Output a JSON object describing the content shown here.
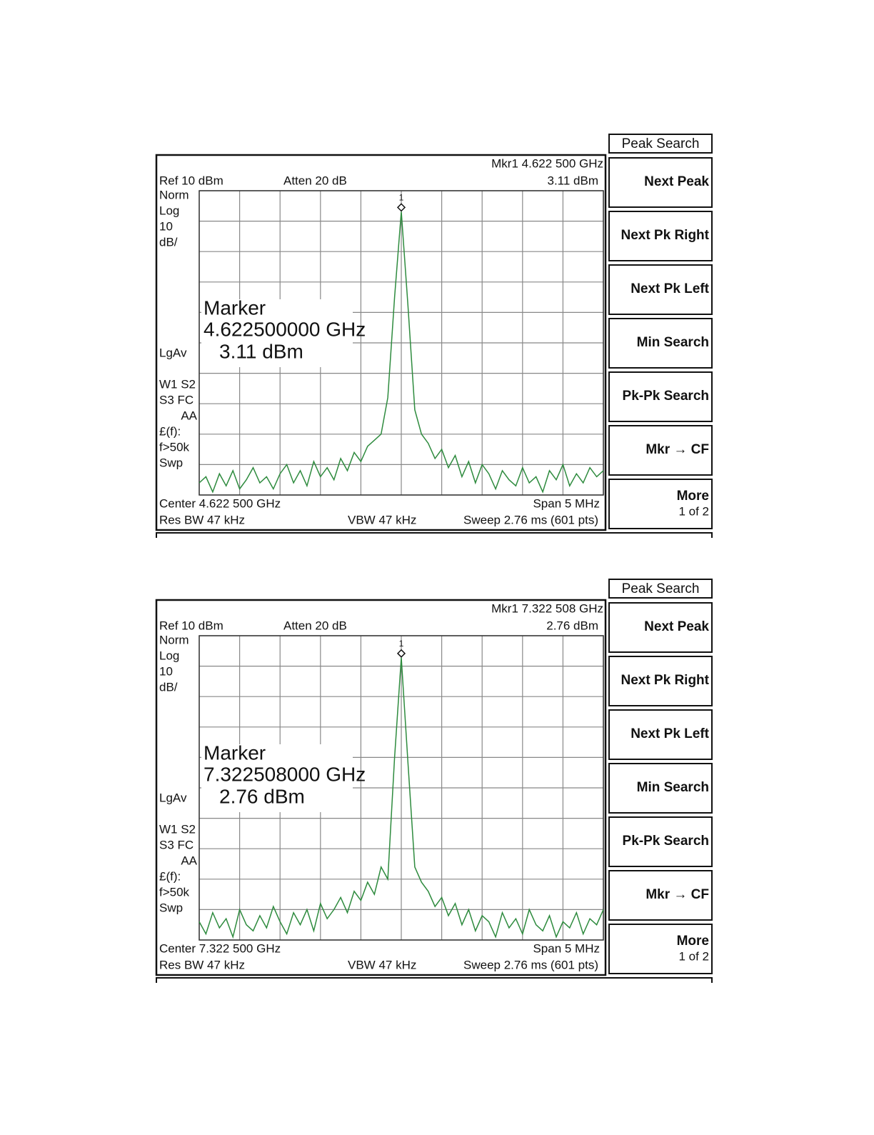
{
  "panels": [
    {
      "softkey_title": "Peak Search",
      "softkeys": [
        [
          "Next Peak"
        ],
        [
          "Next Pk Right"
        ],
        [
          "Next Pk Left"
        ],
        [
          "Min Search"
        ],
        [
          "Pk-Pk Search"
        ],
        [
          "Mkr → CF"
        ],
        [
          "More",
          "1 of 2"
        ]
      ],
      "marker_readout": [
        "Mkr1  4.622 500 GHz",
        "3.11 dBm"
      ],
      "ref": "Ref 10 dBm",
      "atten": "Atten 20 dB",
      "side_labels": [
        "Norm",
        "Log",
        "10",
        "dB/",
        "LgAv",
        "W1  S2",
        "S3  FC",
        "AA",
        "£(f):",
        "f>50k",
        "Swp"
      ],
      "marker_box": [
        "Marker",
        "4.622500000 GHz",
        "3.11 dBm"
      ],
      "marker_label": "1",
      "footer": [
        "Center 4.622 500 GHz",
        "Span 5 MHz",
        "Res BW 47 kHz",
        "VBW 47 kHz",
        "Sweep 2.76 ms (601 pts)"
      ],
      "trace": {
        "color": "#2e8b3e",
        "ylim": [
          -90,
          10
        ],
        "values": [
          -86,
          -84,
          -89,
          -83,
          -87,
          -82,
          -88,
          -85,
          -81,
          -86,
          -84,
          -88,
          -83,
          -80,
          -86,
          -82,
          -87,
          -79,
          -84,
          -81,
          -85,
          -78,
          -82,
          -76,
          -79,
          -74,
          -72,
          -70,
          -58,
          -25,
          3.11,
          -28,
          -62,
          -70,
          -73,
          -78,
          -75,
          -81,
          -77,
          -84,
          -79,
          -86,
          -80,
          -83,
          -88,
          -82,
          -85,
          -87,
          -81,
          -86,
          -84,
          -89,
          -82,
          -85,
          -80,
          -87,
          -83,
          -86,
          -81,
          -84,
          -82
        ]
      }
    },
    {
      "softkey_title": "Peak Search",
      "softkeys": [
        [
          "Next Peak"
        ],
        [
          "Next Pk Right"
        ],
        [
          "Next Pk Left"
        ],
        [
          "Min Search"
        ],
        [
          "Pk-Pk Search"
        ],
        [
          "Mkr → CF"
        ],
        [
          "More",
          "1 of 2"
        ]
      ],
      "marker_readout": [
        "Mkr1  7.322 508 GHz",
        "2.76 dBm"
      ],
      "ref": "Ref 10 dBm",
      "atten": "Atten 20 dB",
      "side_labels": [
        "Norm",
        "Log",
        "10",
        "dB/",
        "LgAv",
        "W1  S2",
        "S3  FC",
        "AA",
        "£(f):",
        "f>50k",
        "Swp"
      ],
      "marker_box": [
        "Marker",
        "7.322508000 GHz",
        "2.76 dBm"
      ],
      "marker_label": "1",
      "footer": [
        "Center 7.322 500 GHz",
        "Span 5 MHz",
        "Res BW 47 kHz",
        "VBW 47 kHz",
        "Sweep 2.76 ms (601 pts)"
      ],
      "trace": {
        "color": "#2e8b3e",
        "ylim": [
          -90,
          10
        ],
        "values": [
          -84,
          -88,
          -81,
          -86,
          -83,
          -89,
          -80,
          -85,
          -87,
          -82,
          -86,
          -79,
          -84,
          -88,
          -81,
          -85,
          -80,
          -87,
          -78,
          -83,
          -80,
          -76,
          -81,
          -74,
          -77,
          -71,
          -75,
          -66,
          -70,
          -30,
          2.76,
          -32,
          -66,
          -71,
          -74,
          -79,
          -76,
          -82,
          -78,
          -85,
          -80,
          -87,
          -82,
          -84,
          -89,
          -81,
          -86,
          -83,
          -88,
          -80,
          -85,
          -87,
          -82,
          -89,
          -84,
          -86,
          -81,
          -88,
          -83,
          -85,
          -80
        ]
      }
    }
  ]
}
